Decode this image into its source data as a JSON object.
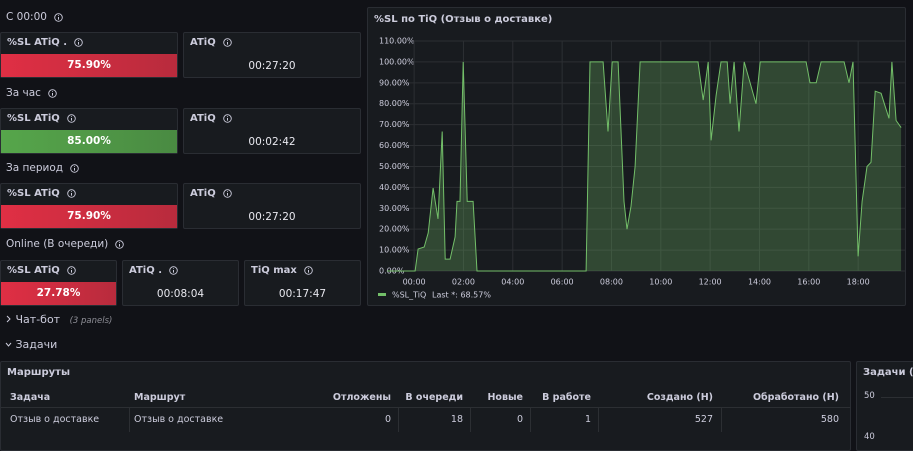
{
  "sections": [
    {
      "title": "С 00:00",
      "panels": [
        {
          "title": "%SL ATiQ .",
          "value": "75.90%",
          "color": "#e02f44"
        },
        {
          "title": "ATiQ",
          "value": "00:27:20"
        }
      ]
    },
    {
      "title": "За час",
      "panels": [
        {
          "title": "%SL ATiQ",
          "value": "85.00%",
          "color": "#56a64b"
        },
        {
          "title": "ATiQ",
          "value": "00:02:42"
        }
      ]
    },
    {
      "title": "За период",
      "panels": [
        {
          "title": "%SL ATiQ",
          "value": "75.90%",
          "color": "#e02f44"
        },
        {
          "title": "ATiQ",
          "value": "00:27:20"
        }
      ]
    },
    {
      "title": "Online (В очереди)",
      "panels": [
        {
          "title": "%SL ATiQ",
          "value": "27.78%",
          "color": "#e02f44"
        },
        {
          "title": "ATiQ .",
          "value": "00:08:04"
        },
        {
          "title": "TiQ max",
          "value": "00:17:47"
        }
      ]
    }
  ],
  "rows": [
    {
      "title": "Чат-бот",
      "note": "(3 panels)"
    },
    {
      "title": "Задачи"
    }
  ],
  "table": {
    "title": "Маршруты",
    "headers": [
      "Задача",
      "Маршрут",
      "Отложены",
      "В очереди",
      "Новые",
      "В работе",
      "Создано (Н)",
      "Обработано (Н)"
    ],
    "rows": [
      [
        "Отзыв о доставке",
        "Отзыв о доставке",
        "0",
        "18",
        "0",
        "1",
        "527",
        "580"
      ]
    ]
  },
  "side_panel": {
    "title": "Задачи (От",
    "ticks": [
      "50",
      "40"
    ]
  },
  "chart_data": {
    "type": "line",
    "title": "%SL по TiQ (Отзыв о доставке)",
    "legend_stat": "Last *: 68.57%",
    "grid": true,
    "xlim": [
      -1.14,
      19.94
    ],
    "xticks": [
      {
        "value": 0,
        "label": "00:00"
      },
      {
        "value": 2,
        "label": "02:00"
      },
      {
        "value": 4,
        "label": "04:00"
      },
      {
        "value": 6,
        "label": "06:00"
      },
      {
        "value": 8,
        "label": "08:00"
      },
      {
        "value": 10,
        "label": "10:00"
      },
      {
        "value": 12,
        "label": "12:00"
      },
      {
        "value": 14,
        "label": "14:00"
      },
      {
        "value": 16,
        "label": "16:00"
      },
      {
        "value": 18,
        "label": "18:00"
      }
    ],
    "ylim": [
      0,
      110
    ],
    "yticks": [
      {
        "value": 0,
        "label": "0.00%"
      },
      {
        "value": 10,
        "label": "10.00%"
      },
      {
        "value": 20,
        "label": "20.00%"
      },
      {
        "value": 30,
        "label": "30.00%"
      },
      {
        "value": 40,
        "label": "40.00%"
      },
      {
        "value": 50,
        "label": "50.00%"
      },
      {
        "value": 60,
        "label": "60.00%"
      },
      {
        "value": 70,
        "label": "70.00%"
      },
      {
        "value": 80,
        "label": "80.00%"
      },
      {
        "value": 90,
        "label": "90.00%"
      },
      {
        "value": 100,
        "label": "100.00%"
      },
      {
        "value": 110,
        "label": "110.00%"
      }
    ],
    "x": [
      -1.09,
      0.04,
      0.16,
      0.41,
      0.57,
      0.77,
      0.97,
      1.14,
      1.26,
      1.46,
      1.66,
      1.74,
      1.86,
      1.99,
      2.15,
      2.39,
      2.55,
      6.97,
      7.13,
      7.66,
      7.86,
      8.03,
      8.27,
      8.51,
      8.63,
      8.79,
      8.96,
      9.16,
      11.51,
      11.72,
      11.92,
      12.04,
      12.24,
      12.44,
      12.69,
      12.81,
      12.97,
      13.17,
      13.38,
      13.86,
      14.03,
      15.89,
      16.05,
      16.3,
      16.5,
      17.43,
      17.63,
      17.79,
      18.0,
      18.16,
      18.36,
      18.52,
      18.69,
      18.93,
      19.09,
      19.25,
      19.37,
      19.54,
      19.74
    ],
    "series": [
      {
        "name": "%SL_TiQ",
        "color": "#73bf69",
        "values": [
          0,
          0,
          10.5,
          11.5,
          18.2,
          39.7,
          24.9,
          66.7,
          5.7,
          5.7,
          16.3,
          33.3,
          33.3,
          100,
          33.3,
          33.3,
          0,
          0,
          100,
          100,
          66.7,
          100,
          100,
          33.3,
          20,
          31,
          50,
          100,
          100,
          81.8,
          100,
          62.5,
          84,
          100,
          100,
          80,
          100,
          66.7,
          100,
          80,
          100,
          100,
          90,
          90,
          100,
          100,
          90,
          100,
          7,
          33.3,
          50,
          52,
          86,
          85,
          79,
          73,
          100,
          72,
          68.57
        ]
      }
    ]
  }
}
